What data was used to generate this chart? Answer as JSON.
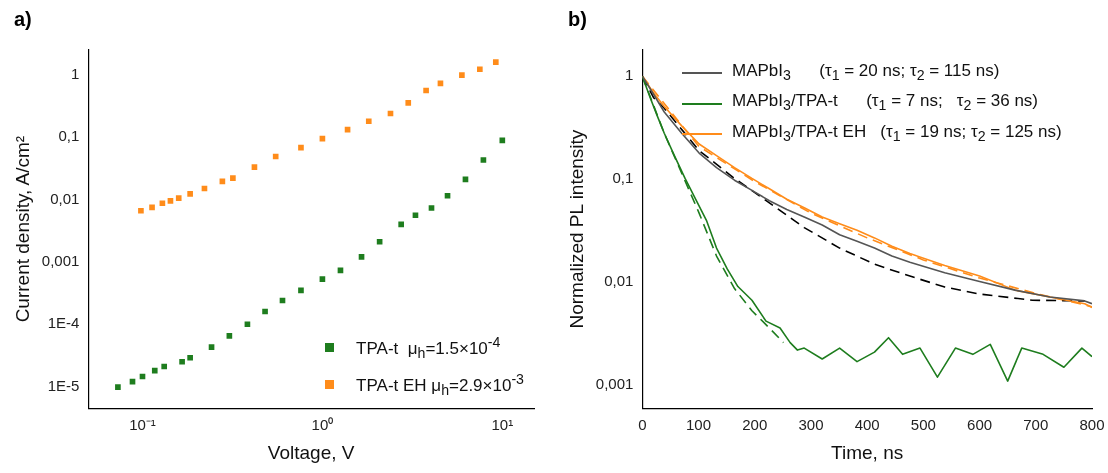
{
  "chart_data": [
    {
      "type": "scatter",
      "title": "a)",
      "xlabel": "Voltage, V",
      "ylabel": "Current density, A/cm²",
      "log": "xy",
      "grid": false,
      "legend": "bottom right",
      "marker": "square",
      "xlim": [
        0.05,
        15
      ],
      "xticks": [
        {
          "value": 0.1,
          "label": "10⁻¹"
        },
        {
          "value": 1,
          "label": "10⁰"
        },
        {
          "value": 10,
          "label": "10¹"
        }
      ],
      "ylim": [
        4.5e-06,
        2.5
      ],
      "yticks": [
        {
          "value": 1e-05,
          "label": "1E-5"
        },
        {
          "value": 0.0001,
          "label": "1E-4"
        },
        {
          "value": 0.001,
          "label": "0,001"
        },
        {
          "value": 0.01,
          "label": "0,01"
        },
        {
          "value": 0.1,
          "label": "0,1"
        },
        1
      ],
      "series": [
        {
          "name": "TPA-t  μ$_{h}$=1.5×10$^{-4}$",
          "color": "#1e7d1e",
          "x": [
            0.073,
            0.088,
            0.1,
            0.117,
            0.132,
            0.166,
            0.184,
            0.242,
            0.304,
            0.383,
            0.48,
            0.6,
            0.76,
            1.0,
            1.26,
            1.65,
            2.08,
            2.74,
            3.29,
            4.04,
            4.96,
            6.24,
            7.85,
            10
          ],
          "values": [
            9.8e-06,
            1.2e-05,
            1.45e-05,
            1.8e-05,
            2.1e-05,
            2.5e-05,
            2.9e-05,
            4.3e-05,
            6.5e-05,
            0.0001,
            0.00016,
            0.00024,
            0.00035,
            0.00053,
            0.00073,
            0.0012,
            0.0021,
            0.004,
            0.0056,
            0.0073,
            0.0115,
            0.021,
            0.043,
            0.089
          ]
        },
        {
          "name": "TPA-t EH μ$_{h}$=2.9×10$^{-3}$",
          "color": "#ff8c1a",
          "x": [
            0.098,
            0.113,
            0.129,
            0.143,
            0.159,
            0.184,
            0.221,
            0.278,
            0.318,
            0.419,
            0.55,
            0.76,
            1.0,
            1.38,
            1.81,
            2.39,
            3.0,
            3.77,
            4.53,
            5.96,
            7.5,
            9.2
          ],
          "values": [
            0.0066,
            0.0075,
            0.0087,
            0.0095,
            0.0105,
            0.0123,
            0.015,
            0.0195,
            0.022,
            0.033,
            0.049,
            0.068,
            0.095,
            0.132,
            0.18,
            0.24,
            0.355,
            0.56,
            0.73,
            0.99,
            1.23,
            1.6
          ]
        }
      ]
    },
    {
      "type": "line",
      "title": "b)",
      "xlabel": "Time, ns",
      "ylabel": "Normalized PL intensity",
      "log": "y",
      "grid": false,
      "legend": "top",
      "marker": "none",
      "xlim": [
        0,
        800
      ],
      "xticks": [
        0,
        100,
        200,
        300,
        400,
        500,
        600,
        700,
        800
      ],
      "ylim": [
        0.0006,
        1.8
      ],
      "yticks": [
        {
          "value": 0.001,
          "label": "0,001"
        },
        {
          "value": 0.01,
          "label": "0,01"
        },
        {
          "value": 0.1,
          "label": "0,1"
        },
        1
      ],
      "series": [
        {
          "name": "MAPbI$_{3}$      (τ$_{1}$ = 20 ns; τ$_{2}$ = 115 ns)",
          "color": "#555555",
          "line_style": "solid",
          "x": [
            0,
            20,
            39,
            70,
            101,
            132,
            164,
            195,
            226,
            257,
            288,
            320,
            351,
            382,
            413,
            444,
            476,
            538,
            600,
            663,
            725,
            787,
            800
          ],
          "values": [
            1,
            0.67,
            0.45,
            0.28,
            0.18,
            0.13,
            0.098,
            0.078,
            0.062,
            0.051,
            0.043,
            0.036,
            0.029,
            0.025,
            0.0215,
            0.018,
            0.0157,
            0.0124,
            0.0102,
            0.0084,
            0.0072,
            0.0066,
            0.0062
          ]
        },
        {
          "name": "MAPbI$_{3}$/TPA-t      (τ$_{1}$ = 7 ns;   τ$_{2}$ = 36 ns)",
          "color": "#1e7d1e",
          "line_style": "solid",
          "x": [
            0,
            14,
            26,
            39,
            57,
            76,
            95,
            114,
            132,
            151,
            170,
            195,
            220,
            245,
            263,
            276,
            288,
            320,
            351,
            382,
            413,
            438,
            463,
            494,
            525,
            557,
            588,
            619,
            650,
            675,
            713,
            750,
            782,
            800
          ],
          "values": [
            1,
            0.62,
            0.42,
            0.28,
            0.17,
            0.102,
            0.064,
            0.04,
            0.0215,
            0.0135,
            0.0091,
            0.0067,
            0.0042,
            0.0036,
            0.0026,
            0.0022,
            0.0023,
            0.0018,
            0.0023,
            0.0017,
            0.0021,
            0.0029,
            0.002,
            0.0023,
            0.0012,
            0.0023,
            0.002,
            0.0025,
            0.0011,
            0.0023,
            0.002,
            0.0015,
            0.0023,
            0.0019
          ]
        },
        {
          "name": "MAPbI$_{3}$/TPA-t EH   (τ$_{1}$ = 19 ns; τ$_{2}$ = 125 ns)",
          "color": "#ff8c1a",
          "line_style": "solid",
          "x": [
            0,
            20,
            39,
            70,
            101,
            132,
            164,
            195,
            226,
            257,
            288,
            320,
            351,
            382,
            413,
            444,
            476,
            538,
            600,
            663,
            725,
            787,
            800
          ],
          "values": [
            1,
            0.69,
            0.51,
            0.33,
            0.22,
            0.17,
            0.13,
            0.102,
            0.081,
            0.064,
            0.053,
            0.043,
            0.037,
            0.032,
            0.027,
            0.0224,
            0.019,
            0.0146,
            0.0115,
            0.0084,
            0.0072,
            0.0062,
            0.0057
          ]
        },
        {
          "color": "#000000",
          "line_style": "dashed",
          "x": [
            0,
            20,
            39,
            101,
            164,
            226,
            288,
            351,
            413,
            476,
            538,
            600,
            694,
            787
          ],
          "values": [
            1,
            0.62,
            0.49,
            0.19,
            0.102,
            0.059,
            0.034,
            0.0215,
            0.015,
            0.0115,
            0.009,
            0.0077,
            0.0067,
            0.0066
          ]
        },
        {
          "color": "#1e7d1e",
          "line_style": "dashed",
          "x": [
            0,
            39,
            101,
            132,
            164,
            195,
            226,
            251
          ],
          "values": [
            1,
            0.28,
            0.047,
            0.018,
            0.0087,
            0.0053,
            0.0036,
            0.0026
          ]
        },
        {
          "color": "#ff8c1a",
          "line_style": "dashed",
          "x": [
            0,
            100,
            200,
            300,
            400,
            500,
            600,
            700,
            800
          ],
          "values": [
            1,
            0.21,
            0.095,
            0.047,
            0.027,
            0.0165,
            0.011,
            0.0078,
            0.0058
          ]
        }
      ]
    }
  ]
}
